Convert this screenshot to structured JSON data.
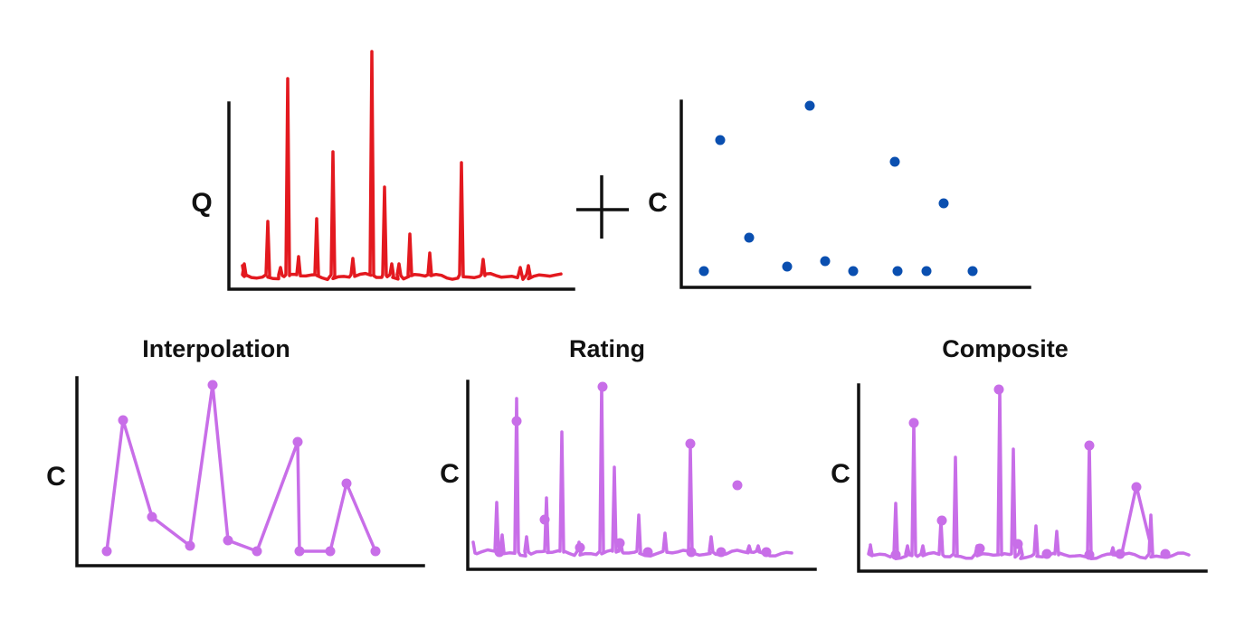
{
  "title": "",
  "colors": {
    "q_series": "#e3191f",
    "c_samples": "#0a4fb0",
    "estimate": "#c86ee8",
    "axis": "#111111"
  },
  "top": {
    "operator_symbol": "+",
    "discharge_panel": {
      "ylabel": "Q"
    },
    "samples_panel": {
      "ylabel": "C"
    }
  },
  "methods": [
    {
      "id": "interpolation",
      "title": "Interpolation",
      "ylabel": "C"
    },
    {
      "id": "rating",
      "title": "Rating",
      "ylabel": "C"
    },
    {
      "id": "composite",
      "title": "Composite",
      "ylabel": "C"
    }
  ]
}
